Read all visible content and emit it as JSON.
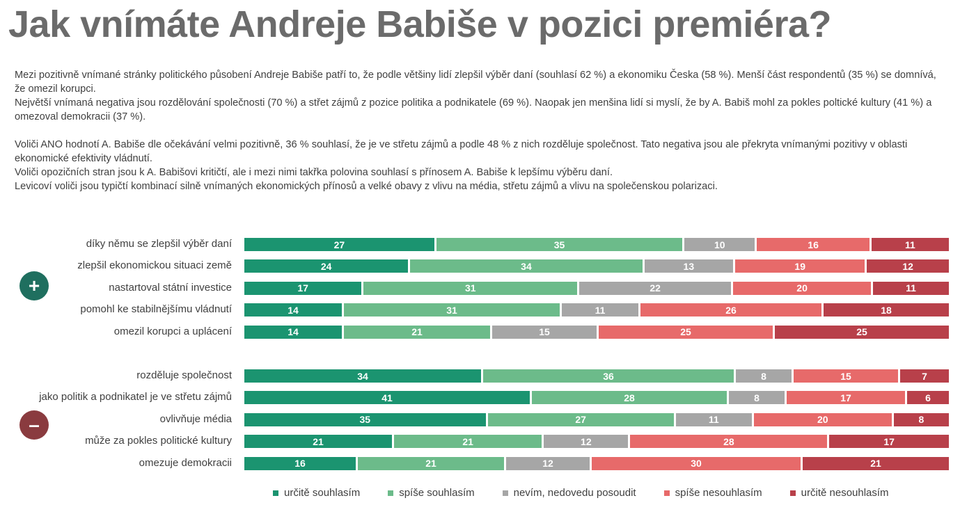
{
  "title": "Jak vnímáte Andreje Babiše v pozici premiéra?",
  "description": [
    "Mezi pozitivně vnímané stránky politického působení Andreje Babiše patří to, že podle většiny lidí zlepšil výběr daní (souhlasí 62 %) a ekonomiku Česka (58 %). Menší část respondentů (35 %) se domnívá, že omezil korupci.",
    "Největší vnímaná negativa jsou rozdělování společnosti (70 %) a střet zájmů z pozice politika a podnikatele (69 %). Naopak jen menšina lidí si myslí, že by A. Babiš mohl za pokles poltické kultury (41 %) a omezoval demokracii (37 %).",
    "",
    "Voliči ANO hodnotí A. Babiše dle očekávání velmi pozitivně, 36 % souhlasí, že je ve střetu zájmů a podle 48 % z nich rozděluje společnost. Tato negativa jsou ale překryta vnímanými pozitivy v oblasti ekonomické efektivity vládnutí.",
    "Voliči opozičních stran jsou k A. Babišovi kritičtí, ale i mezi nimi takřka polovina souhlasí s přínosem A. Babiše k lepšímu výběru daní.",
    "Levicoví voliči jsou typičtí kombinací silně vnímaných ekonomických přínosů a velké obavy z vlivu na média, střetu zájmů a vlivu na společenskou polarizaci."
  ],
  "badges": {
    "plus": "+",
    "minus": "–",
    "plus_color": "#1f6f5f",
    "minus_color": "#8a3b3f"
  },
  "chart_data": {
    "type": "bar",
    "orientation": "horizontal",
    "stacked": "100%",
    "series": [
      {
        "name": "určitě souhlasím",
        "color": "#1b9470"
      },
      {
        "name": "spíše souhlasím",
        "color": "#6cbb8a"
      },
      {
        "name": "nevím, nedovedu posoudit",
        "color": "#a6a6a6"
      },
      {
        "name": "spíše nesouhlasím",
        "color": "#e76a6a"
      },
      {
        "name": "určitě nesouhlasím",
        "color": "#b8404a"
      }
    ],
    "groups": [
      {
        "badge": "plus",
        "rows": [
          {
            "label": "díky němu se zlepšil výběr daní",
            "values": [
              27,
              35,
              10,
              16,
              11
            ]
          },
          {
            "label": "zlepšil ekonomickou situaci země",
            "values": [
              24,
              34,
              13,
              19,
              12
            ]
          },
          {
            "label": "nastartoval státní investice",
            "values": [
              17,
              31,
              22,
              20,
              11
            ]
          },
          {
            "label": "pomohl ke stabilnějšímu vládnutí",
            "values": [
              14,
              31,
              11,
              26,
              18
            ]
          },
          {
            "label": "omezil korupci a uplácení",
            "values": [
              14,
              21,
              15,
              25,
              25
            ]
          }
        ]
      },
      {
        "badge": "minus",
        "rows": [
          {
            "label": "rozděluje společnost",
            "values": [
              34,
              36,
              8,
              15,
              7
            ]
          },
          {
            "label": "jako politik a podnikatel je ve střetu zájmů",
            "values": [
              41,
              28,
              8,
              17,
              6
            ]
          },
          {
            "label": "ovlivňuje média",
            "values": [
              35,
              27,
              11,
              20,
              8
            ]
          },
          {
            "label": "může za pokles politické kultury",
            "values": [
              21,
              21,
              12,
              28,
              17
            ]
          },
          {
            "label": "omezuje demokracii",
            "values": [
              16,
              21,
              12,
              30,
              21
            ]
          }
        ]
      }
    ],
    "legend_position": "bottom",
    "grid": false
  }
}
